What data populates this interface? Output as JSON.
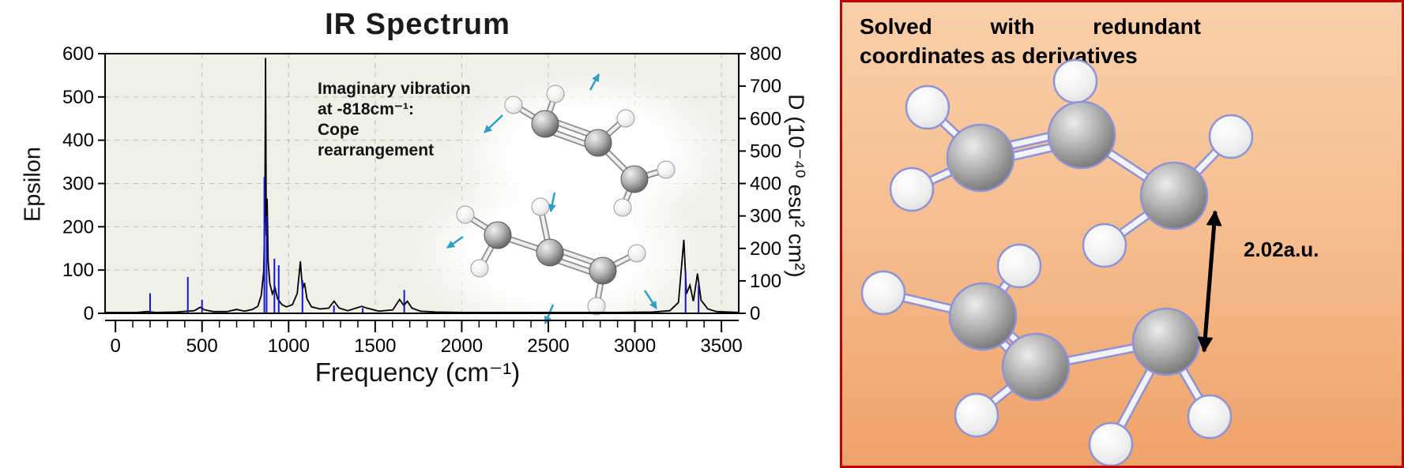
{
  "chart_data": {
    "type": "line",
    "title": "IR Spectrum",
    "xlabel": "Frequency (cm⁻¹)",
    "ylabel_left": "Epsilon",
    "ylabel_right": "D (10⁻⁴⁰ esu² cm²)",
    "xlim": [
      -60,
      3600
    ],
    "ylim_left": [
      0,
      600
    ],
    "ylim_right": [
      0,
      800
    ],
    "x_ticks": [
      0,
      500,
      1000,
      1500,
      2000,
      2500,
      3000,
      3500
    ],
    "x_minor_step": 100,
    "y_ticks_left": [
      0,
      100,
      200,
      300,
      400,
      500,
      600
    ],
    "y_ticks_right": [
      0,
      100,
      200,
      300,
      400,
      500,
      600,
      700,
      800
    ],
    "grid": "dashed",
    "legend": "none",
    "annotation": {
      "lines": [
        "Imaginary vibration",
        "at -818cm⁻¹:",
        "Cope",
        "rearrangement"
      ]
    },
    "series": [
      {
        "name": "Epsilon",
        "color": "#000000",
        "axis": "left",
        "style": "line",
        "points": [
          [
            -55,
            2
          ],
          [
            0,
            2
          ],
          [
            120,
            2
          ],
          [
            185,
            4
          ],
          [
            230,
            2
          ],
          [
            350,
            3
          ],
          [
            455,
            6
          ],
          [
            490,
            14
          ],
          [
            515,
            8
          ],
          [
            565,
            4
          ],
          [
            645,
            4
          ],
          [
            700,
            9
          ],
          [
            745,
            5
          ],
          [
            790,
            9
          ],
          [
            822,
            16
          ],
          [
            842,
            42
          ],
          [
            856,
            95
          ],
          [
            863,
            230
          ],
          [
            867,
            590
          ],
          [
            871,
            180
          ],
          [
            876,
            265
          ],
          [
            882,
            120
          ],
          [
            891,
            70
          ],
          [
            906,
            45
          ],
          [
            921,
            60
          ],
          [
            936,
            34
          ],
          [
            962,
            20
          ],
          [
            988,
            15
          ],
          [
            1022,
            20
          ],
          [
            1050,
            46
          ],
          [
            1068,
            120
          ],
          [
            1080,
            56
          ],
          [
            1092,
            70
          ],
          [
            1106,
            34
          ],
          [
            1132,
            15
          ],
          [
            1182,
            10
          ],
          [
            1232,
            12
          ],
          [
            1262,
            28
          ],
          [
            1292,
            12
          ],
          [
            1342,
            6
          ],
          [
            1422,
            16
          ],
          [
            1452,
            12
          ],
          [
            1522,
            5
          ],
          [
            1602,
            8
          ],
          [
            1641,
            32
          ],
          [
            1666,
            18
          ],
          [
            1686,
            28
          ],
          [
            1712,
            12
          ],
          [
            1762,
            5
          ],
          [
            1852,
            3
          ],
          [
            2002,
            2
          ],
          [
            2302,
            2
          ],
          [
            2602,
            2
          ],
          [
            2902,
            2
          ],
          [
            3102,
            3
          ],
          [
            3202,
            6
          ],
          [
            3252,
            25
          ],
          [
            3283,
            170
          ],
          [
            3298,
            45
          ],
          [
            3318,
            65
          ],
          [
            3338,
            28
          ],
          [
            3362,
            92
          ],
          [
            3383,
            30
          ],
          [
            3422,
            10
          ],
          [
            3472,
            4
          ],
          [
            3600,
            2
          ]
        ]
      },
      {
        "name": "D",
        "color": "#1717c9",
        "axis": "right",
        "style": "impulse",
        "points": [
          [
            200,
            62
          ],
          [
            418,
            112
          ],
          [
            500,
            42
          ],
          [
            860,
            420
          ],
          [
            873,
            300
          ],
          [
            918,
            168
          ],
          [
            943,
            148
          ],
          [
            1080,
            102
          ],
          [
            1262,
            24
          ],
          [
            1428,
            16
          ],
          [
            1668,
            72
          ],
          [
            3293,
            128
          ],
          [
            3368,
            88
          ]
        ]
      }
    ]
  },
  "right_panel": {
    "caption_line1": "Solved with redundant",
    "caption_line2": "coordinates as derivatives",
    "distance_label": "2.02a.u."
  }
}
